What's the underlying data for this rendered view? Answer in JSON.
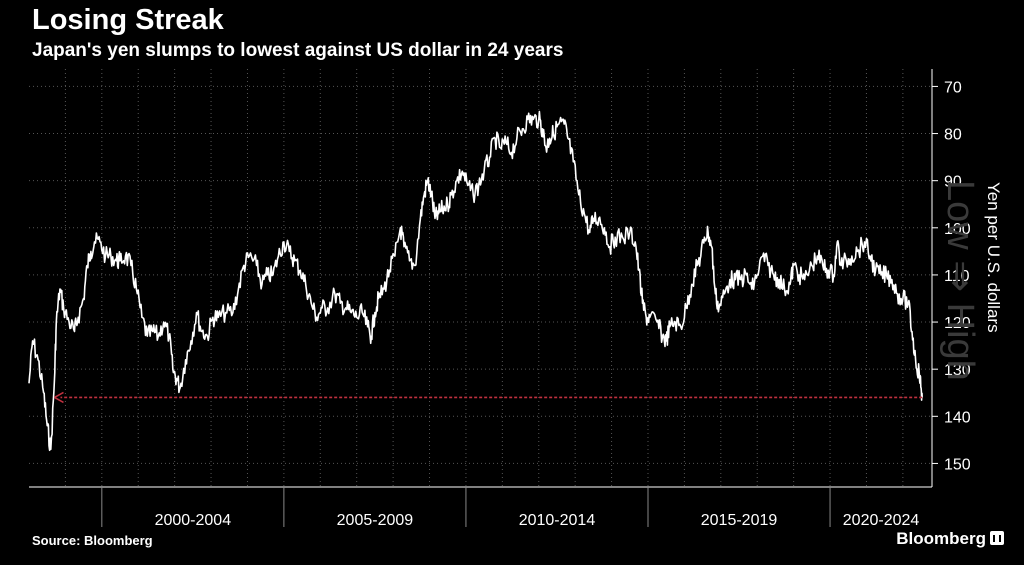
{
  "header": {
    "title": "Losing Streak",
    "subtitle": "Japan's yen slumps to lowest against US dollar in 24 years"
  },
  "footer": {
    "source": "Source: Bloomberg",
    "brand": "Bloomberg"
  },
  "colors": {
    "background": "#000000",
    "line": "#ffffff",
    "grid": "#555555",
    "arrow": "#c0303f"
  },
  "chart_data": {
    "type": "line",
    "title": "Losing Streak",
    "subtitle": "Japan's yen slumps to lowest against US dollar in 24 years",
    "ylabel": "Yen per U.S. dollars",
    "ylabel_watermark": "Low ⇒ High",
    "xlim": [
      1998.0,
      2022.8
    ],
    "ylim": [
      155,
      68
    ],
    "y_inverted": true,
    "yticks": [
      70,
      80,
      90,
      100,
      110,
      120,
      130,
      140,
      150
    ],
    "x_periods": [
      {
        "label": "2000-2004",
        "start": 2000,
        "end": 2005
      },
      {
        "label": "2005-2009",
        "start": 2005,
        "end": 2010
      },
      {
        "label": "2010-2014",
        "start": 2010,
        "end": 2015
      },
      {
        "label": "2015-2019",
        "start": 2015,
        "end": 2020
      },
      {
        "label": "2020-2024",
        "start": 2020,
        "end": 2025
      }
    ],
    "grid": true,
    "series": [
      {
        "values": [
          [
            1998.0,
            133
          ],
          [
            1998.1,
            124
          ],
          [
            1998.25,
            128
          ],
          [
            1998.4,
            135
          ],
          [
            1998.5,
            142
          ],
          [
            1998.6,
            147
          ],
          [
            1998.7,
            132
          ],
          [
            1998.75,
            120
          ],
          [
            1998.85,
            113
          ],
          [
            1998.95,
            117
          ],
          [
            1999.1,
            120
          ],
          [
            1999.25,
            122
          ],
          [
            1999.35,
            119
          ],
          [
            1999.5,
            115
          ],
          [
            1999.6,
            108
          ],
          [
            1999.7,
            105
          ],
          [
            1999.8,
            103
          ],
          [
            1999.95,
            103
          ],
          [
            2000.1,
            106
          ],
          [
            2000.25,
            106
          ],
          [
            2000.4,
            107
          ],
          [
            2000.5,
            107
          ],
          [
            2000.65,
            106
          ],
          [
            2000.8,
            108
          ],
          [
            2000.95,
            113
          ],
          [
            2001.1,
            119
          ],
          [
            2001.25,
            123
          ],
          [
            2001.4,
            122
          ],
          [
            2001.55,
            123
          ],
          [
            2001.7,
            120
          ],
          [
            2001.85,
            123
          ],
          [
            2001.95,
            130
          ],
          [
            2002.05,
            132
          ],
          [
            2002.15,
            134
          ],
          [
            2002.3,
            128
          ],
          [
            2002.45,
            124
          ],
          [
            2002.6,
            118
          ],
          [
            2002.75,
            122
          ],
          [
            2002.9,
            123
          ],
          [
            2003.05,
            119
          ],
          [
            2003.2,
            119
          ],
          [
            2003.4,
            118
          ],
          [
            2003.6,
            118
          ],
          [
            2003.75,
            113
          ],
          [
            2003.9,
            108
          ],
          [
            2004.05,
            106
          ],
          [
            2004.25,
            108
          ],
          [
            2004.4,
            112
          ],
          [
            2004.55,
            110
          ],
          [
            2004.7,
            110
          ],
          [
            2004.85,
            106
          ],
          [
            2005.0,
            103
          ],
          [
            2005.15,
            105
          ],
          [
            2005.3,
            107
          ],
          [
            2005.45,
            109
          ],
          [
            2005.6,
            112
          ],
          [
            2005.75,
            116
          ],
          [
            2005.9,
            119
          ],
          [
            2006.05,
            117
          ],
          [
            2006.2,
            117
          ],
          [
            2006.4,
            114
          ],
          [
            2006.55,
            116
          ],
          [
            2006.7,
            117
          ],
          [
            2006.85,
            118
          ],
          [
            2007.0,
            119
          ],
          [
            2007.15,
            118
          ],
          [
            2007.3,
            121
          ],
          [
            2007.4,
            123
          ],
          [
            2007.5,
            118
          ],
          [
            2007.6,
            115
          ],
          [
            2007.75,
            113
          ],
          [
            2007.9,
            109
          ],
          [
            2008.05,
            106
          ],
          [
            2008.2,
            100
          ],
          [
            2008.3,
            104
          ],
          [
            2008.45,
            107
          ],
          [
            2008.6,
            108
          ],
          [
            2008.75,
            98
          ],
          [
            2008.85,
            93
          ],
          [
            2008.95,
            90
          ],
          [
            2009.05,
            93
          ],
          [
            2009.15,
            98
          ],
          [
            2009.25,
            97
          ],
          [
            2009.35,
            96
          ],
          [
            2009.5,
            95
          ],
          [
            2009.6,
            93
          ],
          [
            2009.75,
            90
          ],
          [
            2009.9,
            88
          ],
          [
            2010.05,
            91
          ],
          [
            2010.2,
            93
          ],
          [
            2010.35,
            91
          ],
          [
            2010.5,
            88
          ],
          [
            2010.65,
            85
          ],
          [
            2010.8,
            81
          ],
          [
            2010.95,
            83
          ],
          [
            2011.1,
            82
          ],
          [
            2011.25,
            84
          ],
          [
            2011.4,
            81
          ],
          [
            2011.55,
            79
          ],
          [
            2011.7,
            77
          ],
          [
            2011.85,
            77
          ],
          [
            2012.0,
            77
          ],
          [
            2012.1,
            79
          ],
          [
            2012.2,
            83
          ],
          [
            2012.3,
            81
          ],
          [
            2012.4,
            80
          ],
          [
            2012.55,
            78
          ],
          [
            2012.7,
            78
          ],
          [
            2012.8,
            81
          ],
          [
            2012.95,
            86
          ],
          [
            2013.1,
            93
          ],
          [
            2013.25,
            97
          ],
          [
            2013.4,
            101
          ],
          [
            2013.5,
            98
          ],
          [
            2013.65,
            98
          ],
          [
            2013.8,
            100
          ],
          [
            2013.95,
            104
          ],
          [
            2014.1,
            102
          ],
          [
            2014.3,
            102
          ],
          [
            2014.5,
            101
          ],
          [
            2014.65,
            103
          ],
          [
            2014.75,
            109
          ],
          [
            2014.85,
            116
          ],
          [
            2014.95,
            119
          ],
          [
            2015.05,
            119
          ],
          [
            2015.25,
            120
          ],
          [
            2015.4,
            123
          ],
          [
            2015.5,
            124
          ],
          [
            2015.6,
            121
          ],
          [
            2015.75,
            120
          ],
          [
            2015.9,
            121
          ],
          [
            2016.05,
            117
          ],
          [
            2016.2,
            112
          ],
          [
            2016.35,
            108
          ],
          [
            2016.45,
            106
          ],
          [
            2016.55,
            102
          ],
          [
            2016.65,
            101
          ],
          [
            2016.75,
            104
          ],
          [
            2016.85,
            114
          ],
          [
            2016.95,
            117
          ],
          [
            2017.1,
            114
          ],
          [
            2017.25,
            111
          ],
          [
            2017.4,
            111
          ],
          [
            2017.55,
            111
          ],
          [
            2017.7,
            110
          ],
          [
            2017.85,
            113
          ],
          [
            2018.0,
            110
          ],
          [
            2018.15,
            106
          ],
          [
            2018.3,
            108
          ],
          [
            2018.45,
            110
          ],
          [
            2018.6,
            111
          ],
          [
            2018.75,
            113
          ],
          [
            2018.9,
            112
          ],
          [
            2019.0,
            108
          ],
          [
            2019.15,
            110
          ],
          [
            2019.3,
            111
          ],
          [
            2019.5,
            108
          ],
          [
            2019.65,
            106
          ],
          [
            2019.8,
            108
          ],
          [
            2019.95,
            109
          ],
          [
            2020.1,
            110
          ],
          [
            2020.2,
            103
          ],
          [
            2020.3,
            108
          ],
          [
            2020.45,
            107
          ],
          [
            2020.6,
            106
          ],
          [
            2020.75,
            105
          ],
          [
            2020.95,
            103
          ],
          [
            2021.1,
            106
          ],
          [
            2021.25,
            109
          ],
          [
            2021.4,
            110
          ],
          [
            2021.55,
            110
          ],
          [
            2021.7,
            111
          ],
          [
            2021.85,
            114
          ],
          [
            2022.0,
            115
          ],
          [
            2022.15,
            116
          ],
          [
            2022.25,
            122
          ],
          [
            2022.35,
            128
          ],
          [
            2022.45,
            131
          ],
          [
            2022.5,
            134
          ],
          [
            2022.53,
            136
          ]
        ]
      }
    ],
    "annotation": {
      "type": "arrow",
      "from": [
        2022.53,
        136
      ],
      "to": [
        1998.7,
        136
      ]
    }
  }
}
